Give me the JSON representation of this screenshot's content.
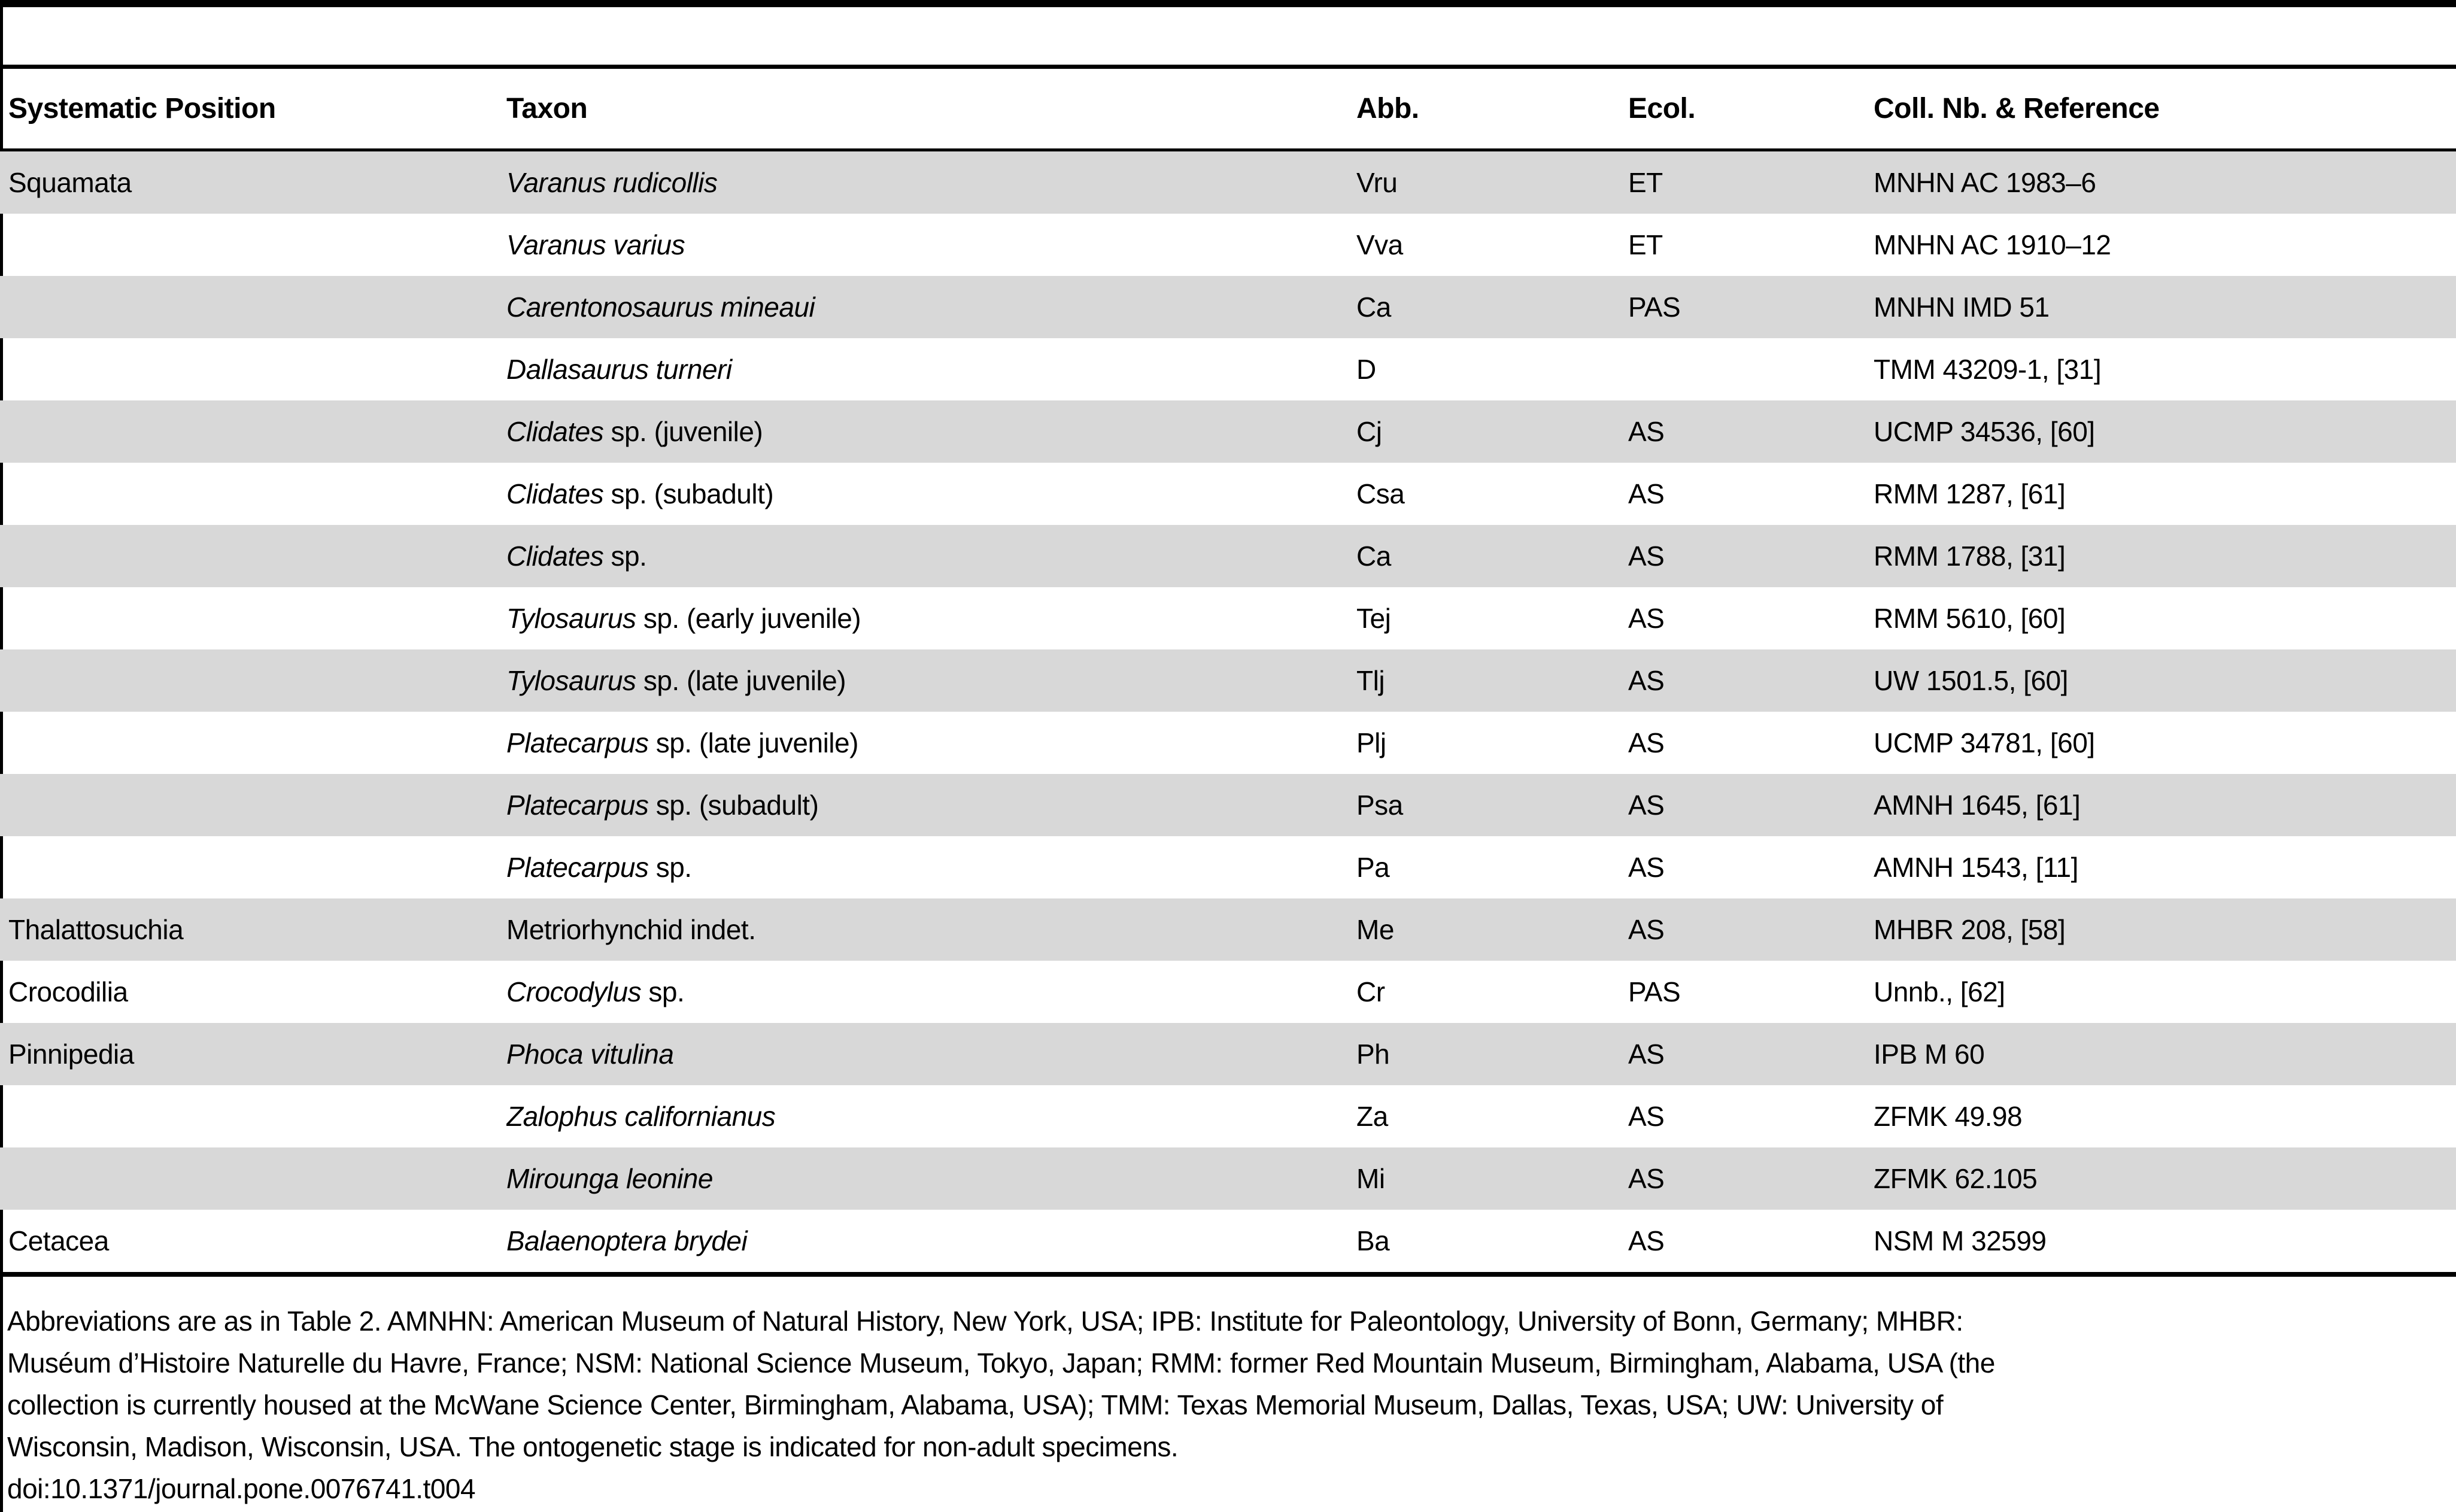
{
  "table": {
    "columns": [
      "Systematic Position",
      "Taxon",
      "Abb.",
      "Ecol.",
      "Coll. Nb. & Reference"
    ],
    "rows": [
      {
        "pos": "Squamata",
        "taxon_italic": "Varanus rudicollis",
        "taxon_roman": "",
        "abb": "Vru",
        "ecol": "ET",
        "ref": "MNHN AC 1983–6"
      },
      {
        "pos": "",
        "taxon_italic": "Varanus varius",
        "taxon_roman": "",
        "abb": "Vva",
        "ecol": "ET",
        "ref": "MNHN AC 1910–12"
      },
      {
        "pos": "",
        "taxon_italic": "Carentonosaurus mineaui",
        "taxon_roman": "",
        "abb": "Ca",
        "ecol": "PAS",
        "ref": "MNHN IMD 51"
      },
      {
        "pos": "",
        "taxon_italic": "Dallasaurus turneri",
        "taxon_roman": "",
        "abb": "D",
        "ecol": "",
        "ref": "TMM 43209-1, [31]"
      },
      {
        "pos": "",
        "taxon_italic": "Clidates",
        "taxon_roman": " sp. (juvenile)",
        "abb": "Cj",
        "ecol": "AS",
        "ref": "UCMP 34536, [60]"
      },
      {
        "pos": "",
        "taxon_italic": "Clidates",
        "taxon_roman": " sp. (subadult)",
        "abb": "Csa",
        "ecol": "AS",
        "ref": "RMM 1287, [61]"
      },
      {
        "pos": "",
        "taxon_italic": "Clidates",
        "taxon_roman": " sp.",
        "abb": "Ca",
        "ecol": "AS",
        "ref": "RMM 1788, [31]"
      },
      {
        "pos": "",
        "taxon_italic": "Tylosaurus",
        "taxon_roman": " sp. (early juvenile)",
        "abb": "Tej",
        "ecol": "AS",
        "ref": "RMM 5610, [60]"
      },
      {
        "pos": "",
        "taxon_italic": "Tylosaurus",
        "taxon_roman": " sp. (late juvenile)",
        "abb": "Tlj",
        "ecol": "AS",
        "ref": "UW 1501.5, [60]"
      },
      {
        "pos": "",
        "taxon_italic": "Platecarpus",
        "taxon_roman": " sp. (late juvenile)",
        "abb": "Plj",
        "ecol": "AS",
        "ref": "UCMP 34781, [60]"
      },
      {
        "pos": "",
        "taxon_italic": "Platecarpus",
        "taxon_roman": " sp. (subadult)",
        "abb": "Psa",
        "ecol": "AS",
        "ref": "AMNH 1645, [61]"
      },
      {
        "pos": "",
        "taxon_italic": "Platecarpus",
        "taxon_roman": " sp.",
        "abb": "Pa",
        "ecol": "AS",
        "ref": "AMNH 1543, [11]"
      },
      {
        "pos": "Thalattosuchia",
        "taxon_italic": "",
        "taxon_roman": "Metriorhynchid indet.",
        "abb": "Me",
        "ecol": "AS",
        "ref": "MHBR 208, [58]"
      },
      {
        "pos": "Crocodilia",
        "taxon_italic": "Crocodylus",
        "taxon_roman": " sp.",
        "abb": "Cr",
        "ecol": "PAS",
        "ref": "Unnb., [62]"
      },
      {
        "pos": "Pinnipedia",
        "taxon_italic": "Phoca vitulina",
        "taxon_roman": "",
        "abb": "Ph",
        "ecol": "AS",
        "ref": "IPB M 60"
      },
      {
        "pos": "",
        "taxon_italic": "Zalophus californianus",
        "taxon_roman": "",
        "abb": "Za",
        "ecol": "AS",
        "ref": "ZFMK 49.98"
      },
      {
        "pos": "",
        "taxon_italic": "Mirounga leonine",
        "taxon_roman": "",
        "abb": "Mi",
        "ecol": "AS",
        "ref": "ZFMK 62.105"
      },
      {
        "pos": "Cetacea",
        "taxon_italic": "Balaenoptera brydei",
        "taxon_roman": "",
        "abb": "Ba",
        "ecol": "AS",
        "ref": "NSM M 32599"
      }
    ]
  },
  "footer": {
    "lines": [
      "Abbreviations are as in Table 2. AMNHN: American Museum of Natural History, New York, USA; IPB: Institute for Paleontology, University of Bonn, Germany; MHBR:",
      "Muséum d’Histoire Naturelle du Havre, France; NSM: National Science Museum, Tokyo, Japan; RMM: former Red Mountain Museum, Birmingham, Alabama, USA (the",
      "collection is currently housed at the McWane Science Center, Birmingham, Alabama, USA); TMM: Texas Memorial Museum, Dallas, Texas, USA; UW: University of",
      "Wisconsin, Madison, Wisconsin, USA. The ontogenetic stage is indicated for non-adult specimens."
    ],
    "doi": "doi:10.1371/journal.pone.0076741.t004"
  },
  "colors": {
    "row_shade": "#d8d8d8",
    "rule": "#000000",
    "background": "#ffffff"
  }
}
